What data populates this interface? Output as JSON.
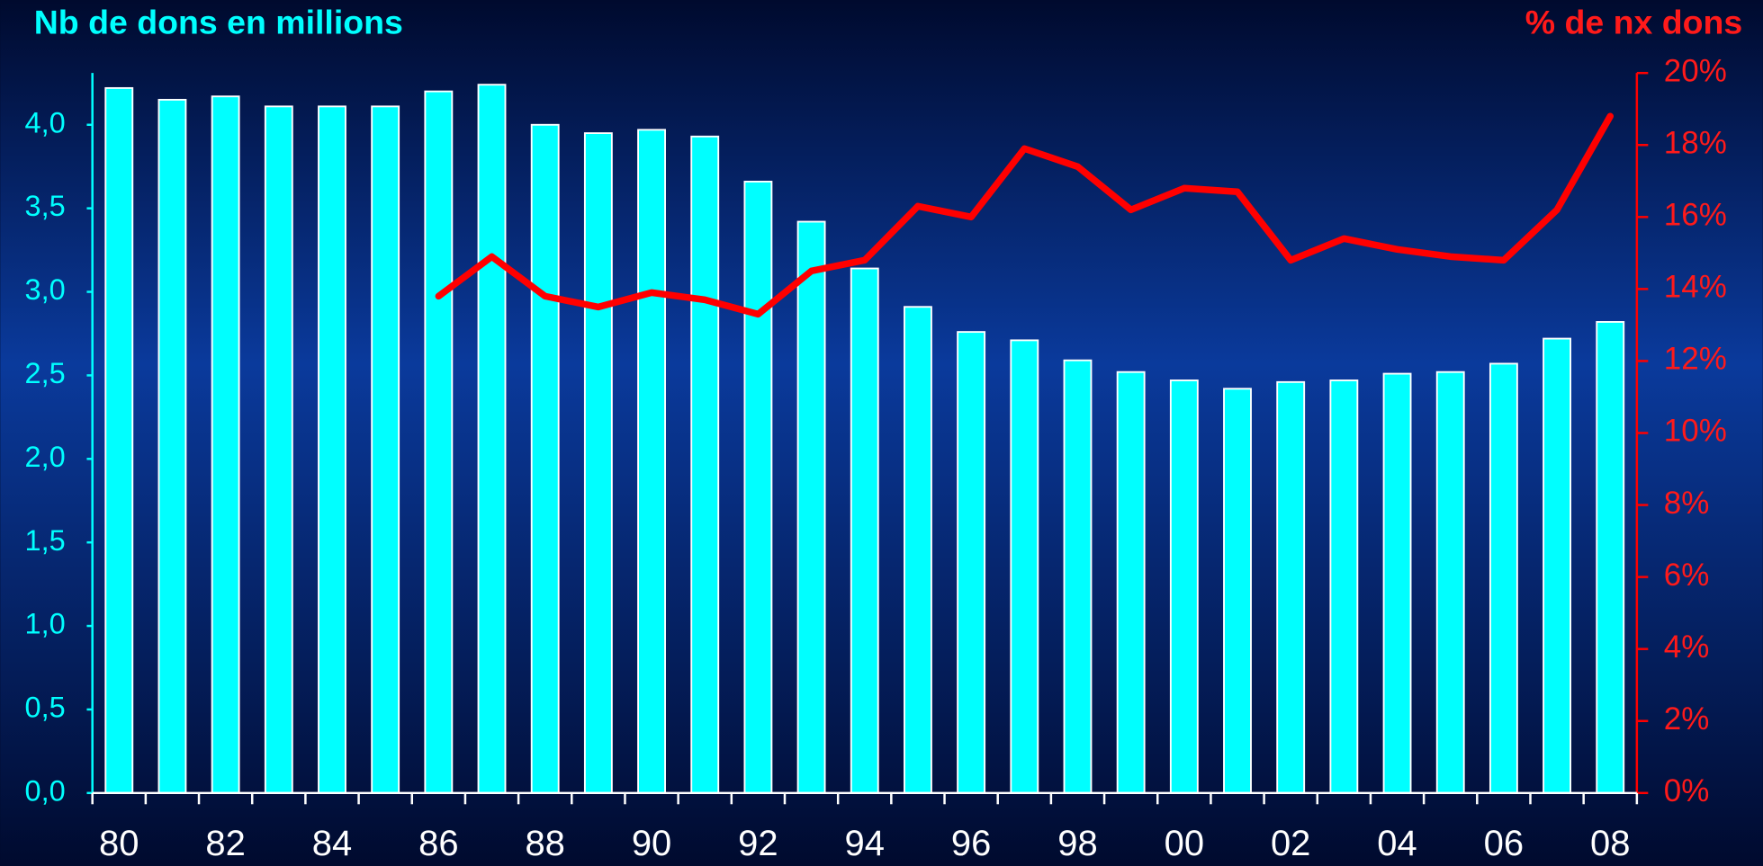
{
  "chart_data": {
    "type": "bar",
    "title": "Nb de dons en millions",
    "y2_title": "% de nx dons",
    "categories": [
      "80",
      null,
      "82",
      null,
      "84",
      null,
      "86",
      null,
      "88",
      null,
      "90",
      null,
      "92",
      null,
      "94",
      null,
      "96",
      null,
      "98",
      null,
      "00",
      null,
      "02",
      null,
      "04",
      null,
      "06",
      null,
      "08"
    ],
    "series": [
      {
        "name": "Nb de dons en millions",
        "type": "bar",
        "color": "#00ffff",
        "values": [
          4.22,
          4.15,
          4.17,
          4.11,
          4.11,
          4.11,
          4.2,
          4.24,
          4.0,
          3.95,
          3.97,
          3.93,
          3.66,
          3.42,
          3.14,
          2.91,
          2.76,
          2.71,
          2.59,
          2.52,
          2.47,
          2.42,
          2.46,
          2.47,
          2.51,
          2.52,
          2.57,
          2.72,
          2.82
        ]
      },
      {
        "name": "% de nx dons",
        "type": "line",
        "axis": "y2",
        "color": "#ff0000",
        "values": [
          null,
          null,
          null,
          null,
          null,
          null,
          13.8,
          14.9,
          13.8,
          13.5,
          13.9,
          13.7,
          13.3,
          14.5,
          14.8,
          16.3,
          16.0,
          17.9,
          17.4,
          16.2,
          16.8,
          16.7,
          14.8,
          15.4,
          15.1,
          14.9,
          14.8,
          16.2,
          18.8
        ]
      }
    ],
    "ylim": [
      0,
      4.31
    ],
    "yticks": [
      {
        "value": 0,
        "label": "0,0"
      },
      {
        "value": 0.5,
        "label": "0,5"
      },
      {
        "value": 1,
        "label": "1,0"
      },
      {
        "value": 1.5,
        "label": "1,5"
      },
      {
        "value": 2,
        "label": "2,0"
      },
      {
        "value": 2.5,
        "label": "2,5"
      },
      {
        "value": 3,
        "label": "3,0"
      },
      {
        "value": 3.5,
        "label": "3,5"
      },
      {
        "value": 4,
        "label": "4,0"
      }
    ],
    "y2lim": [
      0,
      20
    ],
    "y2ticks": [
      {
        "value": 0,
        "label": "0%"
      },
      {
        "value": 2,
        "label": "2%"
      },
      {
        "value": 4,
        "label": "4%"
      },
      {
        "value": 6,
        "label": "6%"
      },
      {
        "value": 8,
        "label": "8%"
      },
      {
        "value": 10,
        "label": "10%"
      },
      {
        "value": 12,
        "label": "12%"
      },
      {
        "value": 14,
        "label": "14%"
      },
      {
        "value": 16,
        "label": "16%"
      },
      {
        "value": 18,
        "label": "18%"
      },
      {
        "value": 20,
        "label": "20%"
      }
    ],
    "grid": false
  }
}
